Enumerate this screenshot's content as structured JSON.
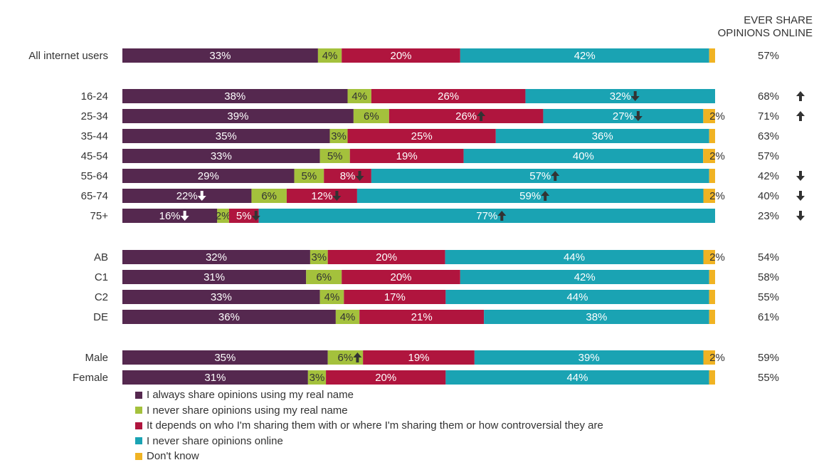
{
  "chart_data": {
    "type": "bar",
    "orientation": "horizontal",
    "stacked": true,
    "percent": true,
    "column_header": [
      "EVER SHARE",
      "OPINIONS ONLINE"
    ],
    "categories": [
      "All internet users",
      "16-24",
      "25-34",
      "35-44",
      "45-54",
      "55-64",
      "65-74",
      "75+",
      "AB",
      "C1",
      "C2",
      "DE",
      "Male",
      "Female"
    ],
    "groups": [
      [
        0
      ],
      [
        1,
        2,
        3,
        4,
        5,
        6,
        7
      ],
      [
        8,
        9,
        10,
        11
      ],
      [
        12,
        13
      ]
    ],
    "series": [
      {
        "name": "I always share opinions using my real name",
        "color": "#55284f",
        "values": [
          33,
          38,
          39,
          35,
          33,
          29,
          22,
          16,
          32,
          31,
          33,
          36,
          35,
          31
        ]
      },
      {
        "name": "I never share opinions using my real name",
        "color": "#a4c13c",
        "values": [
          4,
          4,
          6,
          3,
          5,
          5,
          6,
          2,
          3,
          6,
          4,
          4,
          6,
          3
        ]
      },
      {
        "name": "It depends on who I'm sharing them with or where I'm sharing them or how controversial they are",
        "color": "#b0153e",
        "values": [
          20,
          26,
          26,
          25,
          19,
          8,
          12,
          5,
          20,
          20,
          17,
          21,
          19,
          20
        ]
      },
      {
        "name": "I never share opinions online",
        "color": "#1aa3b3",
        "values": [
          42,
          32,
          27,
          36,
          40,
          57,
          59,
          77,
          44,
          42,
          44,
          38,
          39,
          44
        ]
      },
      {
        "name": "Don't know",
        "color": "#f0b323",
        "values": [
          1,
          0,
          2,
          1,
          2,
          1,
          2,
          0,
          2,
          1,
          1,
          1,
          2,
          1
        ],
        "labels": [
          "",
          "",
          "2%",
          "",
          "2%",
          "",
          "2%",
          "",
          "2%",
          "",
          "",
          "",
          "2%",
          ""
        ]
      }
    ],
    "ever_share": [
      "57%",
      "68%",
      "71%",
      "63%",
      "57%",
      "42%",
      "40%",
      "23%",
      "54%",
      "58%",
      "55%",
      "61%",
      "59%",
      "55%"
    ],
    "ever_share_arrows": [
      "",
      "up",
      "up",
      "",
      "",
      "down",
      "down",
      "down",
      "",
      "",
      "",
      "",
      "",
      ""
    ],
    "segment_arrows": [
      {
        "row": 1,
        "series": 3,
        "dir": "down"
      },
      {
        "row": 2,
        "series": 2,
        "dir": "up"
      },
      {
        "row": 2,
        "series": 3,
        "dir": "down"
      },
      {
        "row": 5,
        "series": 2,
        "dir": "down"
      },
      {
        "row": 5,
        "series": 3,
        "dir": "up"
      },
      {
        "row": 6,
        "series": 0,
        "dir": "down"
      },
      {
        "row": 6,
        "series": 2,
        "dir": "down"
      },
      {
        "row": 6,
        "series": 3,
        "dir": "up"
      },
      {
        "row": 7,
        "series": 0,
        "dir": "down"
      },
      {
        "row": 7,
        "series": 2,
        "dir": "down"
      },
      {
        "row": 7,
        "series": 3,
        "dir": "up"
      },
      {
        "row": 12,
        "series": 1,
        "dir": "up"
      }
    ],
    "legend_position": "bottom-left",
    "grid": false
  }
}
